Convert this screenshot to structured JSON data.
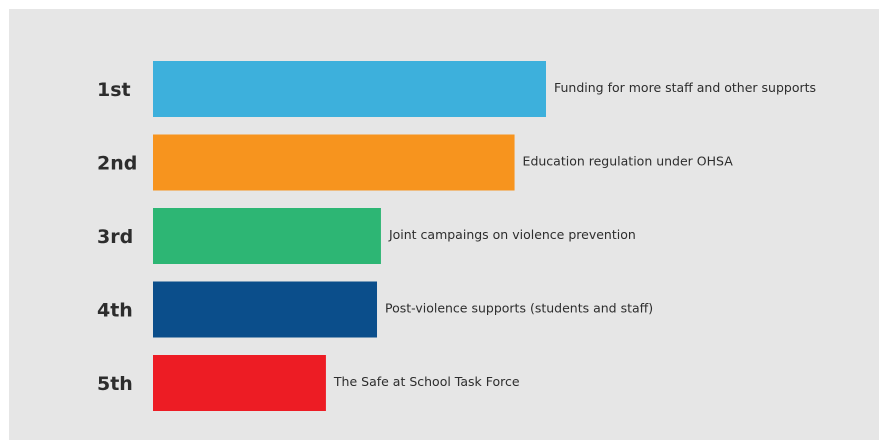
{
  "chart_data": {
    "type": "bar",
    "orientation": "horizontal",
    "title": "",
    "xlabel": "",
    "ylabel": "",
    "grid": false,
    "legend": "none",
    "background": "#e6e6e6",
    "categories": [
      "1st",
      "2nd",
      "3rd",
      "4th",
      "5th"
    ],
    "bar_labels": [
      "Funding for more staff and other supports",
      "Education regulation under OHSA",
      "Joint campaings on violence prevention",
      "Post-violence supports (students and staff)",
      "The Safe at School Task Force"
    ],
    "values": [
      100,
      92,
      58,
      57,
      44
    ],
    "xlim": [
      0,
      100
    ],
    "colors": [
      "#3db0dc",
      "#f7941e",
      "#2db674",
      "#0b4e8b",
      "#ed1c24"
    ]
  }
}
